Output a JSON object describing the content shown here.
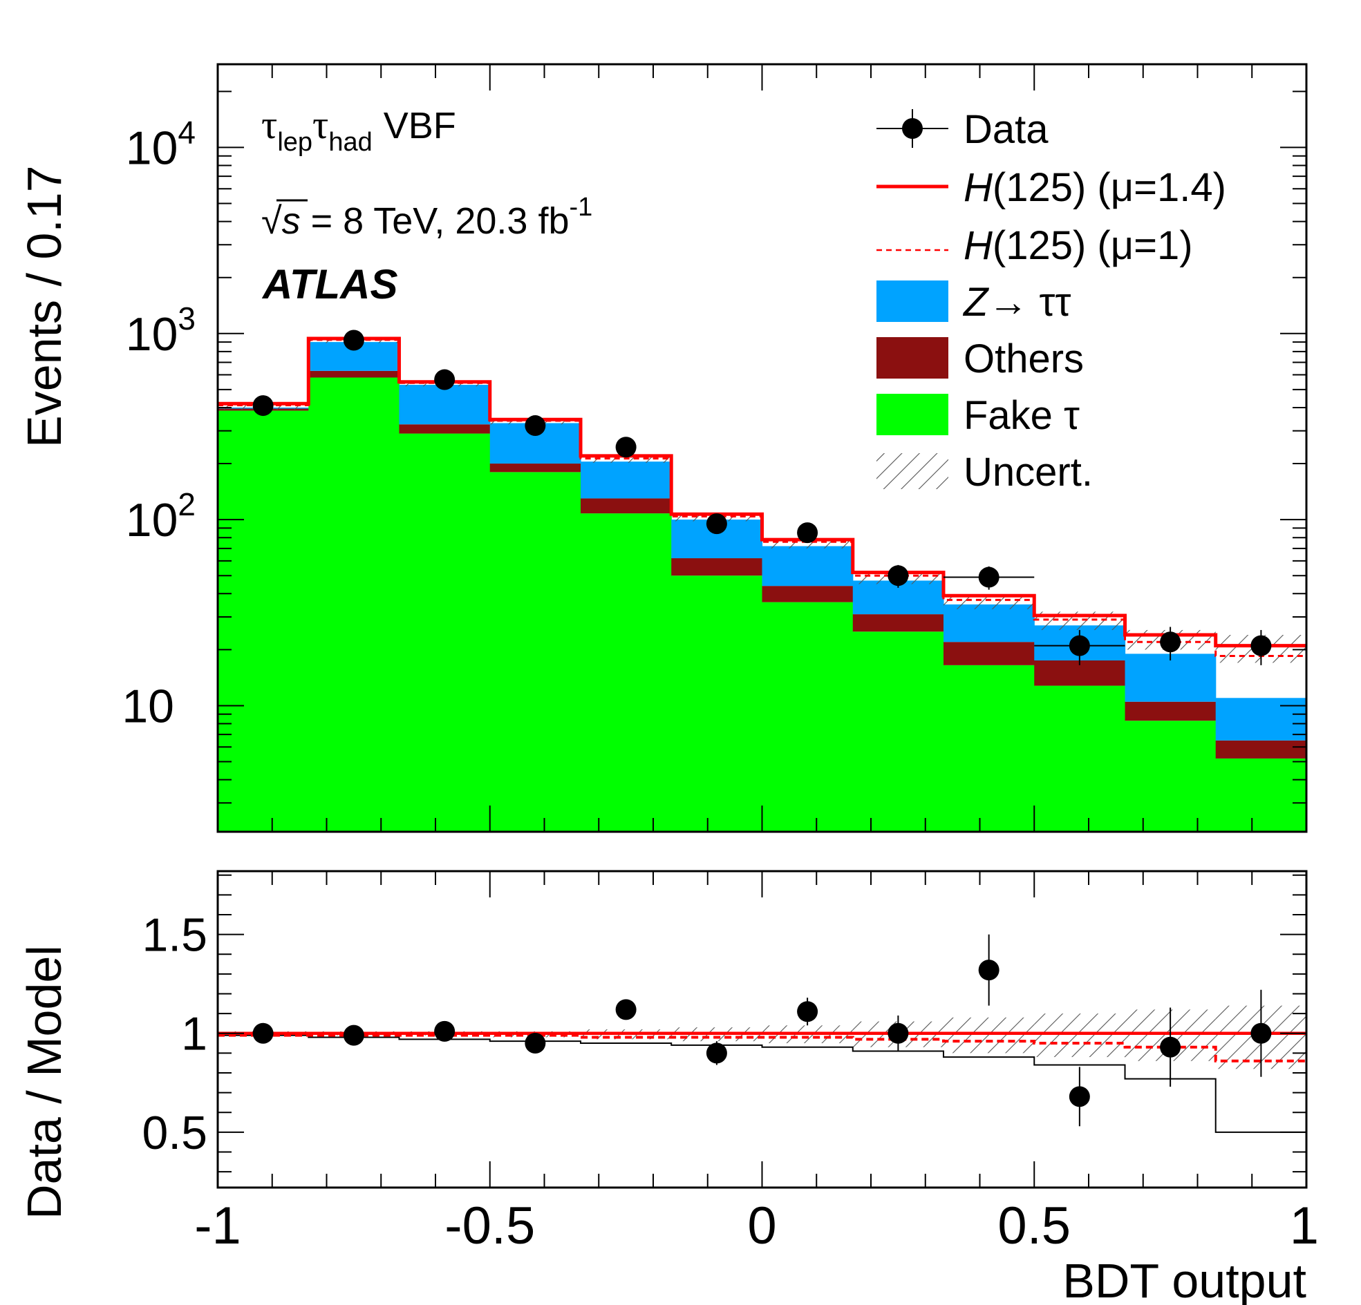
{
  "chart_data": [
    {
      "type": "bar",
      "stacked": true,
      "log_y": true,
      "ylabel": "Events / 0.17",
      "ylim": [
        2.1,
        28000
      ],
      "xlim": [
        -1,
        1
      ],
      "y_tick_labels": [
        {
          "base": "10",
          "exp": "4"
        },
        {
          "base": "10",
          "exp": "3"
        },
        {
          "base": "10",
          "exp": "2"
        },
        {
          "base": "10",
          "exp": ""
        }
      ],
      "annotations": {
        "channel_tau": "τ",
        "channel_lep": "lep",
        "channel_had": "had",
        "channel_vbf": "VBF",
        "energy_sqrt": "√",
        "energy_s": "s",
        "energy_rest": " = 8 TeV, 20.3 fb",
        "energy_sup": "-1",
        "experiment": "ATLAS"
      },
      "legend": {
        "placement": "top-right",
        "entries": [
          {
            "key": "data",
            "label_pre": "",
            "label_italic": "",
            "label": "Data"
          },
          {
            "key": "h14",
            "label_pre": "",
            "label_italic": "H",
            "label": "(125) (μ=1.4)"
          },
          {
            "key": "h1",
            "label_pre": "",
            "label_italic": "H",
            "label": "(125) (μ=1)"
          },
          {
            "key": "ztt",
            "label_pre": "",
            "label_italic": "Z",
            "label": "→ ττ"
          },
          {
            "key": "others",
            "label_pre": "",
            "label_italic": "",
            "label": "Others"
          },
          {
            "key": "fake",
            "label_pre": "",
            "label_italic": "",
            "label": "Fake τ"
          },
          {
            "key": "uncert",
            "label_pre": "",
            "label_italic": "",
            "label": "Uncert."
          }
        ]
      },
      "colors": {
        "fake": "#00ff00",
        "others": "#8b1010",
        "ztt": "#00a3ff",
        "higgs": "#ff0000",
        "data": "#000000"
      },
      "bin_edges": [
        -1,
        -0.8333,
        -0.6667,
        -0.5,
        -0.3333,
        -0.1667,
        0,
        0.1667,
        0.3333,
        0.5,
        0.6667,
        0.8333,
        1
      ],
      "series": [
        {
          "name": "Fake τ",
          "values": [
            385,
            580,
            290,
            180,
            108,
            50,
            36,
            25,
            16.5,
            12.8,
            8.3,
            5.2
          ]
        },
        {
          "name": "Others",
          "values": [
            395,
            630,
            325,
            200,
            130,
            62,
            44,
            31,
            22,
            17.5,
            10.5,
            6.5
          ]
        },
        {
          "name": "Z→ ττ",
          "values": [
            400,
            900,
            530,
            330,
            205,
            100,
            72,
            47,
            35,
            27,
            19,
            11
          ]
        },
        {
          "name": "H(125) (μ=1.4)",
          "values": [
            420,
            940,
            550,
            345,
            220,
            107,
            78,
            52,
            39,
            30.5,
            24,
            21
          ]
        },
        {
          "name": "H(125) (μ=1)",
          "values": [
            412,
            925,
            543,
            340,
            213,
            104,
            76,
            50,
            37,
            29,
            22,
            18.5
          ]
        }
      ],
      "uncertainty_band": [
        {
          "low": 390,
          "high": 425
        },
        {
          "low": 890,
          "high": 945
        },
        {
          "low": 520,
          "high": 555
        },
        {
          "low": 325,
          "high": 350
        },
        {
          "low": 202,
          "high": 220
        },
        {
          "low": 98,
          "high": 107
        },
        {
          "low": 70,
          "high": 78
        },
        {
          "low": 45,
          "high": 52
        },
        {
          "low": 33,
          "high": 39
        },
        {
          "low": 25.5,
          "high": 32
        },
        {
          "low": 20,
          "high": 25.5
        },
        {
          "low": 17,
          "high": 24
        }
      ],
      "data_points": [
        {
          "x": -0.9167,
          "y": 410,
          "ylo": 390,
          "yhi": 430
        },
        {
          "x": -0.75,
          "y": 920,
          "ylo": 890,
          "yhi": 950
        },
        {
          "x": -0.5833,
          "y": 565,
          "ylo": 542,
          "yhi": 589
        },
        {
          "x": -0.4167,
          "y": 320,
          "ylo": 302,
          "yhi": 338
        },
        {
          "x": -0.25,
          "y": 245,
          "ylo": 230,
          "yhi": 261
        },
        {
          "x": -0.0833,
          "y": 95,
          "ylo": 85,
          "yhi": 105
        },
        {
          "x": 0.0833,
          "y": 85,
          "ylo": 76,
          "yhi": 94
        },
        {
          "x": 0.25,
          "y": 50,
          "ylo": 43,
          "yhi": 57
        },
        {
          "x": 0.4167,
          "y": 49,
          "ylo": 42,
          "yhi": 56
        },
        {
          "x": 0.5833,
          "y": 21,
          "ylo": 16.5,
          "yhi": 25.5
        },
        {
          "x": 0.75,
          "y": 22,
          "ylo": 17.5,
          "yhi": 26.5
        },
        {
          "x": 0.9167,
          "y": 21,
          "ylo": 16.5,
          "yhi": 25.5
        }
      ],
      "data_xerr": [
        {
          "bin": 8,
          "xlo": 0.3333,
          "xhi": 0.5
        },
        {
          "bin": 9,
          "xlo": 0.5,
          "xhi": 0.6667
        }
      ]
    },
    {
      "type": "line",
      "ylabel": "Data / Model",
      "xlabel": "BDT output",
      "ylim": [
        0.22,
        1.82
      ],
      "xlim": [
        -1,
        1
      ],
      "x_ticks": [
        {
          "value": -1,
          "label": "-1"
        },
        {
          "value": -0.5,
          "label": "-0.5"
        },
        {
          "value": 0,
          "label": "0"
        },
        {
          "value": 0.5,
          "label": "0.5"
        },
        {
          "value": 1,
          "label": "1"
        }
      ],
      "y_ticks": [
        {
          "value": 0.5,
          "label": "0.5"
        },
        {
          "value": 1,
          "label": "1"
        },
        {
          "value": 1.5,
          "label": "1.5"
        }
      ],
      "ratio_points": [
        {
          "x": -0.9167,
          "y": 1.0,
          "err": 0.0
        },
        {
          "x": -0.75,
          "y": 0.99,
          "err": 0.0
        },
        {
          "x": -0.5833,
          "y": 1.01,
          "err": 0.0
        },
        {
          "x": -0.4167,
          "y": 0.95,
          "err": 0.0
        },
        {
          "x": -0.25,
          "y": 1.12,
          "err": 0.04
        },
        {
          "x": -0.0833,
          "y": 0.9,
          "err": 0.06
        },
        {
          "x": 0.0833,
          "y": 1.11,
          "err": 0.07
        },
        {
          "x": 0.25,
          "y": 1.0,
          "err": 0.09
        },
        {
          "x": 0.4167,
          "y": 1.32,
          "err": 0.18
        },
        {
          "x": 0.5833,
          "y": 0.68,
          "err": 0.15
        },
        {
          "x": 0.75,
          "y": 0.93,
          "err": 0.2
        },
        {
          "x": 0.9167,
          "y": 1.0,
          "err": 0.22
        }
      ],
      "mu1_ratio": [
        0.99,
        0.99,
        0.99,
        0.99,
        0.98,
        0.98,
        0.98,
        0.97,
        0.96,
        0.95,
        0.93,
        0.86
      ],
      "bkg_only_ratio": [
        0.99,
        0.98,
        0.97,
        0.96,
        0.95,
        0.94,
        0.93,
        0.91,
        0.88,
        0.84,
        0.77,
        0.5
      ],
      "uncertainty_band": [
        {
          "low": 0.99,
          "high": 1.01
        },
        {
          "low": 0.99,
          "high": 1.01
        },
        {
          "low": 0.99,
          "high": 1.01
        },
        {
          "low": 0.98,
          "high": 1.01
        },
        {
          "low": 0.97,
          "high": 1.02
        },
        {
          "low": 0.96,
          "high": 1.03
        },
        {
          "low": 0.95,
          "high": 1.04
        },
        {
          "low": 0.93,
          "high": 1.06
        },
        {
          "low": 0.9,
          "high": 1.08
        },
        {
          "low": 0.88,
          "high": 1.1
        },
        {
          "low": 0.86,
          "high": 1.12
        },
        {
          "low": 0.82,
          "high": 1.14
        }
      ]
    }
  ]
}
